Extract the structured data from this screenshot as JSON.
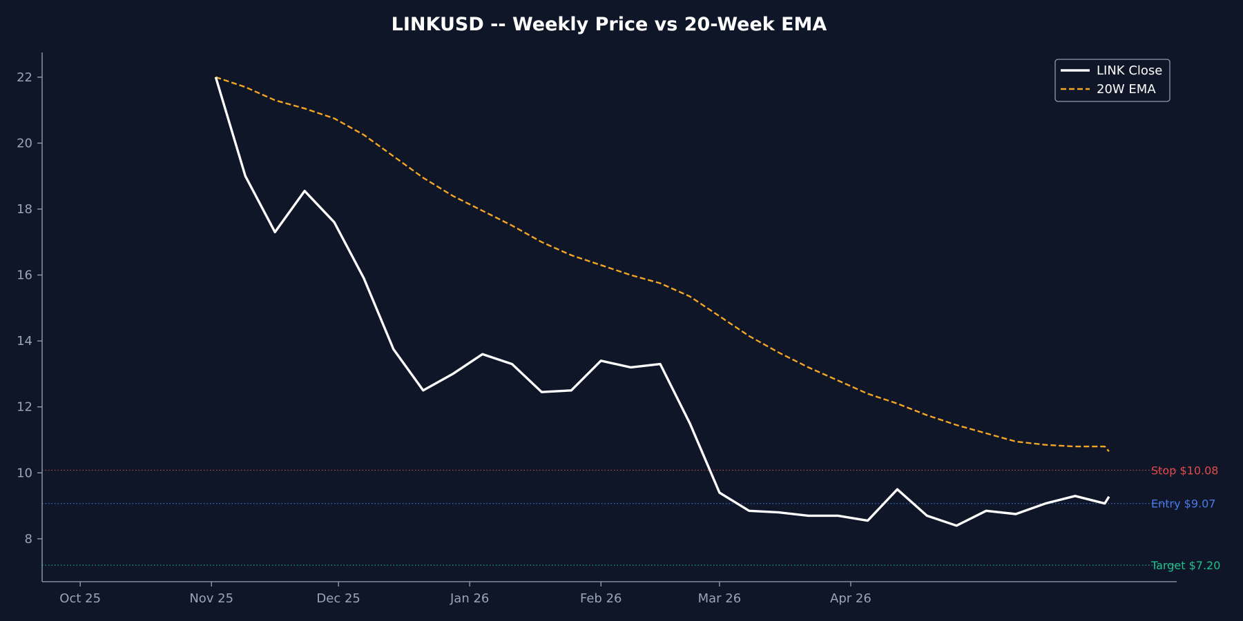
{
  "chart_data": {
    "type": "line",
    "title": "LINKUSD -- Weekly Price vs 20-Week EMA",
    "xlabel": "",
    "ylabel": "",
    "x": [
      "2025-11-02",
      "2025-11-09",
      "2025-11-16",
      "2025-11-23",
      "2025-11-30",
      "2025-12-07",
      "2025-12-14",
      "2025-12-21",
      "2025-12-28",
      "2026-01-04",
      "2026-01-11",
      "2026-01-18",
      "2026-01-25",
      "2026-02-01",
      "2026-02-08",
      "2026-02-15",
      "2026-02-22",
      "2026-03-01",
      "2026-03-08",
      "2026-03-15",
      "2026-03-22",
      "2026-03-29",
      "2026-04-05",
      "2026-04-12",
      "2026-04-19",
      "2026-04-26",
      "2026-05-03",
      "2026-05-10",
      "2026-05-17",
      "2026-05-24",
      "2026-05-31",
      "2026-06-01"
    ],
    "x_ticks": [
      {
        "label": "Oct 25",
        "date": "2025-10-01"
      },
      {
        "label": "Nov 25",
        "date": "2025-11-01"
      },
      {
        "label": "Dec 25",
        "date": "2025-12-01"
      },
      {
        "label": "Jan 26",
        "date": "2026-01-01"
      },
      {
        "label": "Feb 26",
        "date": "2026-02-01"
      },
      {
        "label": "Mar 26",
        "date": "2026-03-01"
      },
      {
        "label": "Apr 26",
        "date": "2026-04-01"
      }
    ],
    "xlim": [
      "2025-09-22",
      "2026-06-17"
    ],
    "ylim": [
      6.7,
      22.75
    ],
    "y_ticks": [
      8,
      10,
      12,
      14,
      16,
      18,
      20,
      22
    ],
    "series": [
      {
        "name": "LINK Close",
        "color": "#ffffff",
        "style": "solid",
        "values": [
          22.0,
          19.0,
          17.3,
          18.55,
          17.6,
          15.9,
          13.75,
          12.5,
          13.0,
          13.6,
          13.3,
          12.45,
          12.5,
          13.4,
          13.2,
          13.3,
          11.5,
          9.4,
          8.85,
          8.8,
          8.7,
          8.7,
          8.55,
          9.5,
          8.7,
          8.4,
          8.85,
          8.75,
          9.07,
          9.3,
          9.07,
          9.28
        ]
      },
      {
        "name": "20W EMA",
        "color": "#f5a623",
        "style": "dashed",
        "values": [
          22.0,
          21.7,
          21.3,
          21.05,
          20.75,
          20.25,
          19.6,
          18.95,
          18.4,
          17.95,
          17.5,
          17.0,
          16.6,
          16.3,
          16.0,
          15.75,
          15.35,
          14.75,
          14.15,
          13.65,
          13.2,
          12.8,
          12.4,
          12.1,
          11.75,
          11.45,
          11.2,
          10.95,
          10.85,
          10.8,
          10.8,
          10.65
        ]
      }
    ],
    "reference_lines": [
      {
        "label": "Stop $10.08",
        "value": 10.08,
        "color": "#e04b4b"
      },
      {
        "label": "Entry $9.07",
        "value": 9.07,
        "color": "#4b7bea"
      },
      {
        "label": "Target $7.20",
        "value": 7.2,
        "color": "#21c08b"
      }
    ],
    "grid": false,
    "legend": "top-right"
  },
  "colors": {
    "background": "#0e1628",
    "axis": "#9aa5b8",
    "legend_frame": "#9aa5b8"
  }
}
